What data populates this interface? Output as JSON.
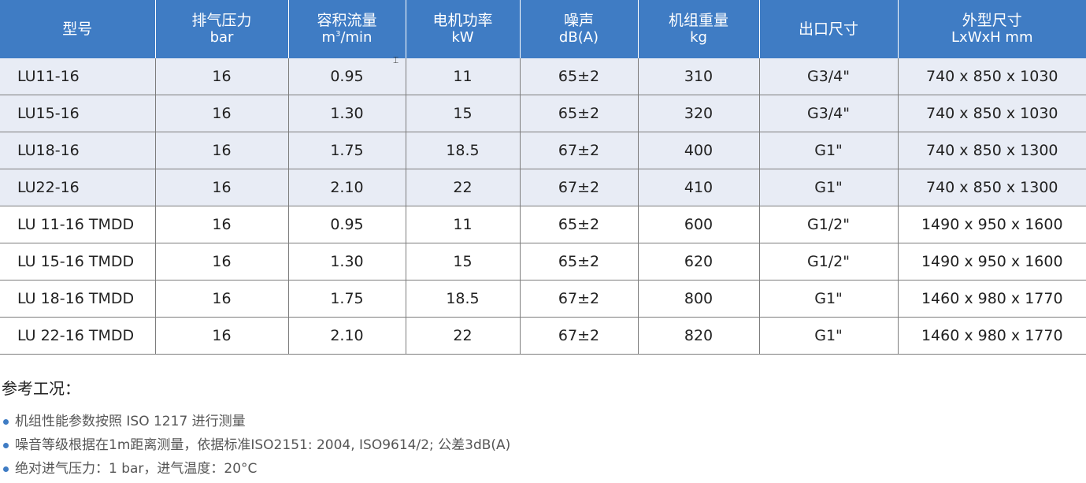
{
  "table": {
    "headers": [
      {
        "name": "型号",
        "unit": ""
      },
      {
        "name": "排气压力",
        "unit": "bar"
      },
      {
        "name": "容积流量",
        "unit_base": "m",
        "unit_sup": "3",
        "unit_rest": "/min"
      },
      {
        "name": "电机功率",
        "unit": "kW"
      },
      {
        "name": "噪声",
        "unit": "dB(A)"
      },
      {
        "name": "机组重量",
        "unit": "kg"
      },
      {
        "name": "出口尺寸",
        "unit": ""
      },
      {
        "name": "外型尺寸",
        "unit": "LxWxH mm"
      }
    ],
    "rows": [
      [
        "LU11-16",
        "16",
        "0.95",
        "11",
        "65±2",
        "310",
        "G3/4\"",
        "740 x 850 x 1030"
      ],
      [
        "LU15-16",
        "16",
        "1.30",
        "15",
        "65±2",
        "320",
        "G3/4\"",
        "740 x 850 x 1030"
      ],
      [
        "LU18-16",
        "16",
        "1.75",
        "18.5",
        "67±2",
        "400",
        "G1\"",
        "740 x 850 x 1300"
      ],
      [
        "LU22-16",
        "16",
        "2.10",
        "22",
        "67±2",
        "410",
        "G1\"",
        "740 x 850 x 1300"
      ],
      [
        "LU 11-16 TMDD",
        "16",
        "0.95",
        "11",
        "65±2",
        "600",
        "G1/2\"",
        "1490 x 950 x 1600"
      ],
      [
        "LU 15-16 TMDD",
        "16",
        "1.30",
        "15",
        "65±2",
        "620",
        "G1/2\"",
        "1490 x 950 x 1600"
      ],
      [
        "LU 18-16 TMDD",
        "16",
        "1.75",
        "18.5",
        "67±2",
        "800",
        "G1\"",
        "1460 x 980 x 1770"
      ],
      [
        "LU 22-16 TMDD",
        "16",
        "2.10",
        "22",
        "67±2",
        "820",
        "G1\"",
        "1460 x 980 x 1770"
      ]
    ]
  },
  "notes": {
    "title": "参考工况：",
    "items": [
      "机组性能参数按照 ISO 1217 进行测量",
      "噪音等级根据在1m距离测量，依据标准ISO2151: 2004, ISO9614/2; 公差3dB(A)",
      "绝对进气压力：1 bar，进气温度：20°C"
    ]
  },
  "colors": {
    "header_bg": "#3f7cc4",
    "row_shaded": "#e8ecf5",
    "bullet": "#3f7cc4"
  }
}
